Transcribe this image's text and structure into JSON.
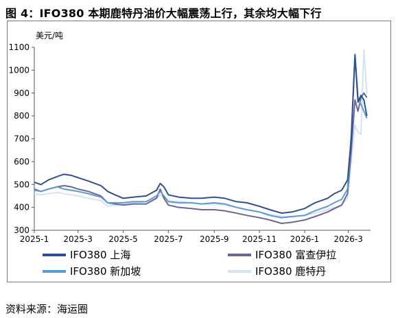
{
  "figure": {
    "title": "图 4：IFO380 本期鹿特丹油价大幅震荡上行，其余均大幅下行",
    "source": "资料来源：海运圈"
  },
  "chart_data": {
    "type": "line",
    "ylabel": "美元/吨",
    "xlabel": "",
    "ylim": [
      300,
      1100
    ],
    "yticks": [
      300,
      400,
      500,
      600,
      700,
      800,
      900,
      1000,
      1100
    ],
    "xlim": [
      "2025-01-01",
      "2026-03-31"
    ],
    "xticks": [
      "2025-1",
      "2025-3",
      "2025-5",
      "2025-7",
      "2025-9",
      "2025-11",
      "2026-1",
      "2026-3"
    ],
    "grid": false,
    "legend_position": "bottom",
    "series": [
      {
        "name": "IFO380 上海",
        "color": "#2f4f8f",
        "points": [
          [
            "2025-01-01",
            510
          ],
          [
            "2025-01-10",
            500
          ],
          [
            "2025-01-20",
            520
          ],
          [
            "2025-02-01",
            535
          ],
          [
            "2025-02-10",
            545
          ],
          [
            "2025-02-20",
            540
          ],
          [
            "2025-03-01",
            530
          ],
          [
            "2025-03-15",
            515
          ],
          [
            "2025-04-01",
            495
          ],
          [
            "2025-04-10",
            470
          ],
          [
            "2025-04-20",
            455
          ],
          [
            "2025-05-01",
            440
          ],
          [
            "2025-05-15",
            445
          ],
          [
            "2025-06-01",
            450
          ],
          [
            "2025-06-15",
            475
          ],
          [
            "2025-06-20",
            505
          ],
          [
            "2025-06-25",
            490
          ],
          [
            "2025-07-01",
            455
          ],
          [
            "2025-07-15",
            445
          ],
          [
            "2025-08-01",
            440
          ],
          [
            "2025-08-15",
            440
          ],
          [
            "2025-09-01",
            445
          ],
          [
            "2025-09-15",
            440
          ],
          [
            "2025-10-01",
            425
          ],
          [
            "2025-10-15",
            420
          ],
          [
            "2025-11-01",
            405
          ],
          [
            "2025-11-15",
            390
          ],
          [
            "2025-12-01",
            375
          ],
          [
            "2025-12-15",
            380
          ],
          [
            "2026-01-01",
            395
          ],
          [
            "2026-01-15",
            420
          ],
          [
            "2026-02-01",
            440
          ],
          [
            "2026-02-10",
            460
          ],
          [
            "2026-02-20",
            475
          ],
          [
            "2026-02-28",
            520
          ],
          [
            "2026-03-05",
            700
          ],
          [
            "2026-03-10",
            1065
          ],
          [
            "2026-03-14",
            860
          ],
          [
            "2026-03-18",
            890
          ],
          [
            "2026-03-22",
            870
          ],
          [
            "2026-03-26",
            800
          ]
        ]
      },
      {
        "name": "IFO380 富查伊拉",
        "color": "#6b6793",
        "points": [
          [
            "2025-01-01",
            480
          ],
          [
            "2025-01-10",
            470
          ],
          [
            "2025-01-20",
            480
          ],
          [
            "2025-02-01",
            490
          ],
          [
            "2025-02-10",
            495
          ],
          [
            "2025-02-20",
            490
          ],
          [
            "2025-03-01",
            480
          ],
          [
            "2025-03-15",
            470
          ],
          [
            "2025-04-01",
            450
          ],
          [
            "2025-04-10",
            420
          ],
          [
            "2025-04-20",
            415
          ],
          [
            "2025-05-01",
            410
          ],
          [
            "2025-05-15",
            415
          ],
          [
            "2025-06-01",
            415
          ],
          [
            "2025-06-15",
            440
          ],
          [
            "2025-06-20",
            480
          ],
          [
            "2025-06-25",
            440
          ],
          [
            "2025-07-01",
            410
          ],
          [
            "2025-07-15",
            400
          ],
          [
            "2025-08-01",
            395
          ],
          [
            "2025-08-15",
            390
          ],
          [
            "2025-09-01",
            390
          ],
          [
            "2025-09-15",
            385
          ],
          [
            "2025-10-01",
            375
          ],
          [
            "2025-10-15",
            365
          ],
          [
            "2025-11-01",
            355
          ],
          [
            "2025-11-15",
            345
          ],
          [
            "2025-12-01",
            330
          ],
          [
            "2025-12-15",
            335
          ],
          [
            "2026-01-01",
            345
          ],
          [
            "2026-01-15",
            360
          ],
          [
            "2026-02-01",
            380
          ],
          [
            "2026-02-10",
            395
          ],
          [
            "2026-02-20",
            410
          ],
          [
            "2026-02-28",
            460
          ],
          [
            "2026-03-05",
            650
          ],
          [
            "2026-03-10",
            870
          ],
          [
            "2026-03-14",
            820
          ],
          [
            "2026-03-18",
            880
          ],
          [
            "2026-03-22",
            900
          ],
          [
            "2026-03-26",
            880
          ]
        ]
      },
      {
        "name": "IFO380 新加坡",
        "color": "#5b9bd5",
        "points": [
          [
            "2025-01-01",
            475
          ],
          [
            "2025-01-10",
            470
          ],
          [
            "2025-01-20",
            480
          ],
          [
            "2025-02-01",
            490
          ],
          [
            "2025-02-10",
            480
          ],
          [
            "2025-02-20",
            475
          ],
          [
            "2025-03-01",
            470
          ],
          [
            "2025-03-15",
            460
          ],
          [
            "2025-04-01",
            445
          ],
          [
            "2025-04-10",
            420
          ],
          [
            "2025-04-20",
            420
          ],
          [
            "2025-05-01",
            420
          ],
          [
            "2025-05-15",
            425
          ],
          [
            "2025-06-01",
            425
          ],
          [
            "2025-06-15",
            450
          ],
          [
            "2025-06-20",
            470
          ],
          [
            "2025-06-25",
            450
          ],
          [
            "2025-07-01",
            425
          ],
          [
            "2025-07-15",
            420
          ],
          [
            "2025-08-01",
            420
          ],
          [
            "2025-08-15",
            415
          ],
          [
            "2025-09-01",
            420
          ],
          [
            "2025-09-15",
            415
          ],
          [
            "2025-10-01",
            400
          ],
          [
            "2025-10-15",
            390
          ],
          [
            "2025-11-01",
            380
          ],
          [
            "2025-11-15",
            365
          ],
          [
            "2025-12-01",
            355
          ],
          [
            "2025-12-15",
            360
          ],
          [
            "2026-01-01",
            365
          ],
          [
            "2026-01-15",
            385
          ],
          [
            "2026-02-01",
            405
          ],
          [
            "2026-02-10",
            420
          ],
          [
            "2026-02-20",
            435
          ],
          [
            "2026-02-28",
            480
          ],
          [
            "2026-03-05",
            720
          ],
          [
            "2026-03-10",
            1070
          ],
          [
            "2026-03-14",
            880
          ],
          [
            "2026-03-18",
            850
          ],
          [
            "2026-03-22",
            820
          ],
          [
            "2026-03-26",
            790
          ]
        ]
      },
      {
        "name": "IFO380 鹿特丹",
        "color": "#d5e1f7",
        "points": [
          [
            "2025-01-01",
            460
          ],
          [
            "2025-01-10",
            455
          ],
          [
            "2025-01-20",
            460
          ],
          [
            "2025-02-01",
            465
          ],
          [
            "2025-02-10",
            460
          ],
          [
            "2025-02-20",
            455
          ],
          [
            "2025-03-01",
            450
          ],
          [
            "2025-03-15",
            440
          ],
          [
            "2025-04-01",
            430
          ],
          [
            "2025-04-10",
            405
          ],
          [
            "2025-04-20",
            410
          ],
          [
            "2025-05-01",
            415
          ],
          [
            "2025-05-15",
            420
          ],
          [
            "2025-06-01",
            425
          ],
          [
            "2025-06-15",
            440
          ],
          [
            "2025-06-20",
            455
          ],
          [
            "2025-06-25",
            445
          ],
          [
            "2025-07-01",
            430
          ],
          [
            "2025-07-15",
            425
          ],
          [
            "2025-08-01",
            420
          ],
          [
            "2025-08-15",
            415
          ],
          [
            "2025-09-01",
            415
          ],
          [
            "2025-09-15",
            410
          ],
          [
            "2025-10-01",
            400
          ],
          [
            "2025-10-15",
            390
          ],
          [
            "2025-11-01",
            380
          ],
          [
            "2025-11-15",
            370
          ],
          [
            "2025-12-01",
            360
          ],
          [
            "2025-12-15",
            360
          ],
          [
            "2026-01-01",
            365
          ],
          [
            "2026-01-15",
            375
          ],
          [
            "2026-02-01",
            390
          ],
          [
            "2026-02-10",
            400
          ],
          [
            "2026-02-20",
            410
          ],
          [
            "2026-02-28",
            440
          ],
          [
            "2026-03-05",
            600
          ],
          [
            "2026-03-10",
            760
          ],
          [
            "2026-03-14",
            730
          ],
          [
            "2026-03-18",
            720
          ],
          [
            "2026-03-22",
            1090
          ],
          [
            "2026-03-26",
            900
          ]
        ]
      }
    ]
  }
}
